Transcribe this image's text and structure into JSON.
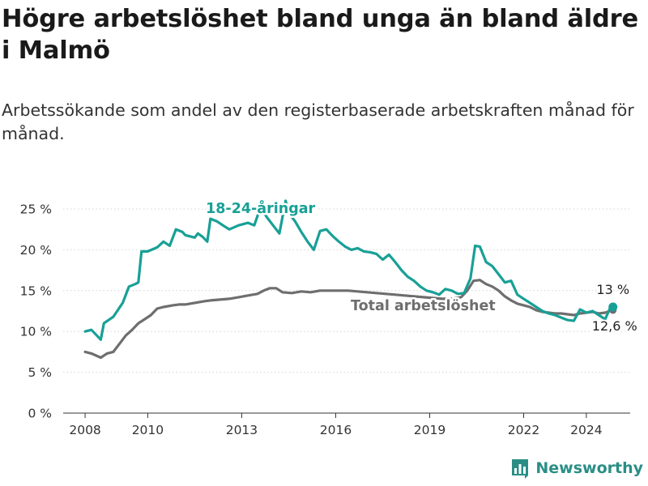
{
  "title": "Högre arbetslöshet bland unga än bland äldre i Malmö",
  "subtitle": "Arbetssökande som andel av den registerbaserade arbetskraften månad för månad.",
  "brand": "Newsworthy",
  "chart_data": {
    "type": "line",
    "title": "Högre arbetslöshet bland unga än bland äldre i Malmö",
    "xlabel": "",
    "ylabel": "",
    "xlim": [
      2007.3,
      2025.4
    ],
    "ylim": [
      0,
      25
    ],
    "x_ticks": [
      2008,
      2010,
      2013,
      2016,
      2019,
      2022,
      2024
    ],
    "y_ticks": [
      {
        "value": 0,
        "label": "0 %"
      },
      {
        "value": 5,
        "label": "5 %"
      },
      {
        "value": 10,
        "label": "10 %"
      },
      {
        "value": 15,
        "label": "15 %"
      },
      {
        "value": 20,
        "label": "20 %"
      },
      {
        "value": 25,
        "label": "25 %"
      }
    ],
    "series": [
      {
        "name": "18-24-åringar",
        "color": "#18a096",
        "x": [
          2008.0,
          2008.2,
          2008.5,
          2008.6,
          2008.9,
          2009.2,
          2009.4,
          2009.6,
          2009.7,
          2009.8,
          2010.0,
          2010.3,
          2010.5,
          2010.7,
          2010.9,
          2011.1,
          2011.2,
          2011.5,
          2011.6,
          2011.75,
          2011.9,
          2012.0,
          2012.2,
          2012.4,
          2012.6,
          2012.9,
          2013.2,
          2013.4,
          2013.6,
          2013.8,
          2014.0,
          2014.2,
          2014.4,
          2014.5,
          2014.7,
          2014.9,
          2015.1,
          2015.3,
          2015.5,
          2015.7,
          2015.9,
          2016.1,
          2016.3,
          2016.5,
          2016.7,
          2016.9,
          2017.1,
          2017.3,
          2017.5,
          2017.7,
          2017.9,
          2018.1,
          2018.3,
          2018.5,
          2018.7,
          2018.9,
          2019.1,
          2019.3,
          2019.5,
          2019.7,
          2019.9,
          2020.1,
          2020.3,
          2020.45,
          2020.6,
          2020.8,
          2021.0,
          2021.2,
          2021.4,
          2021.6,
          2021.8,
          2022.0,
          2022.2,
          2022.4,
          2022.6,
          2022.8,
          2023.0,
          2023.2,
          2023.4,
          2023.6,
          2023.8,
          2024.0,
          2024.2,
          2024.4,
          2024.6,
          2024.75,
          2024.85
        ],
        "values": [
          10.0,
          10.2,
          9.0,
          11.0,
          11.8,
          13.5,
          15.5,
          15.8,
          16.0,
          19.8,
          19.8,
          20.3,
          21.0,
          20.5,
          22.5,
          22.2,
          21.8,
          21.5,
          22.0,
          21.6,
          21.0,
          23.8,
          23.5,
          23.0,
          22.5,
          23.0,
          23.3,
          23.0,
          25.2,
          24.0,
          23.0,
          22.0,
          26.0,
          24.5,
          23.5,
          22.2,
          21.0,
          20.0,
          22.3,
          22.5,
          21.7,
          21.0,
          20.4,
          20.0,
          20.2,
          19.8,
          19.7,
          19.5,
          18.8,
          19.4,
          18.5,
          17.5,
          16.7,
          16.2,
          15.5,
          15.0,
          14.8,
          14.5,
          15.2,
          15.0,
          14.6,
          14.7,
          16.5,
          20.5,
          20.4,
          18.5,
          18.0,
          17.0,
          16.0,
          16.2,
          14.5,
          14.0,
          13.5,
          13.0,
          12.5,
          12.2,
          12.0,
          11.7,
          11.4,
          11.3,
          12.7,
          12.3,
          12.5,
          12.0,
          11.5,
          12.8,
          13.0
        ],
        "end_label": "13 %"
      },
      {
        "name": "Total arbetslöshet",
        "color": "#6e6e6e",
        "x": [
          2008.0,
          2008.2,
          2008.5,
          2008.7,
          2008.9,
          2009.1,
          2009.3,
          2009.5,
          2009.7,
          2009.9,
          2010.1,
          2010.3,
          2010.5,
          2010.8,
          2011.0,
          2011.2,
          2011.5,
          2011.8,
          2012.0,
          2012.3,
          2012.6,
          2012.9,
          2013.2,
          2013.5,
          2013.7,
          2013.9,
          2014.1,
          2014.3,
          2014.6,
          2014.9,
          2015.2,
          2015.5,
          2015.8,
          2016.1,
          2016.4,
          2016.7,
          2017.0,
          2017.3,
          2017.6,
          2017.9,
          2018.2,
          2018.5,
          2018.8,
          2019.1,
          2019.4,
          2019.7,
          2020.0,
          2020.2,
          2020.4,
          2020.6,
          2020.8,
          2021.0,
          2021.2,
          2021.4,
          2021.6,
          2021.8,
          2022.0,
          2022.2,
          2022.4,
          2022.6,
          2022.8,
          2023.0,
          2023.2,
          2023.4,
          2023.6,
          2023.8,
          2024.0,
          2024.2,
          2024.4,
          2024.6,
          2024.75,
          2024.85
        ],
        "values": [
          7.5,
          7.3,
          6.8,
          7.3,
          7.5,
          8.5,
          9.5,
          10.2,
          11.0,
          11.5,
          12.0,
          12.8,
          13.0,
          13.2,
          13.3,
          13.3,
          13.5,
          13.7,
          13.8,
          13.9,
          14.0,
          14.2,
          14.4,
          14.6,
          15.0,
          15.3,
          15.3,
          14.8,
          14.7,
          14.9,
          14.8,
          15.0,
          15.0,
          15.0,
          15.0,
          14.9,
          14.8,
          14.7,
          14.6,
          14.5,
          14.4,
          14.3,
          14.2,
          14.1,
          14.0,
          14.0,
          14.2,
          15.0,
          16.2,
          16.3,
          15.8,
          15.5,
          15.0,
          14.3,
          13.8,
          13.4,
          13.2,
          13.0,
          12.6,
          12.4,
          12.3,
          12.2,
          12.2,
          12.1,
          12.0,
          12.2,
          12.3,
          12.4,
          12.2,
          12.3,
          12.5,
          12.6
        ],
        "end_label": "12,6 %"
      }
    ]
  }
}
